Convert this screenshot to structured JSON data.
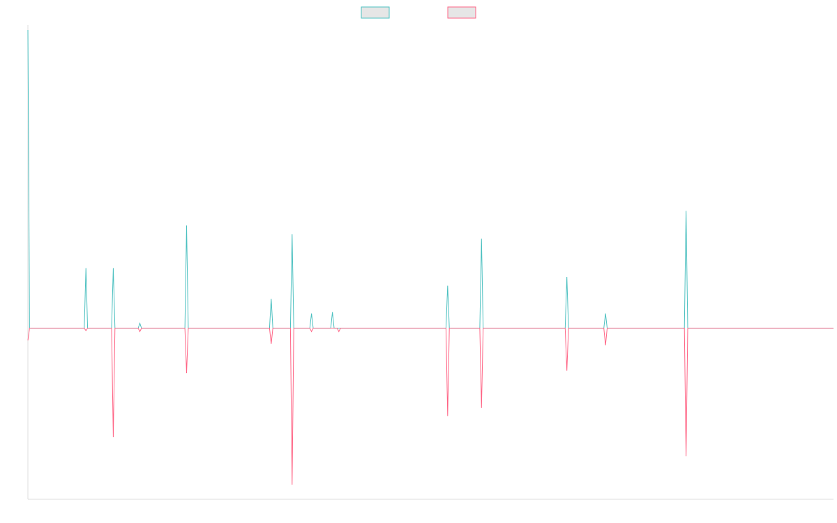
{
  "chart_data": {
    "type": "line",
    "title": "",
    "xlabel": "",
    "ylabel": "",
    "grid": false,
    "legend": "top-center",
    "xlim": [
      0,
      1000
    ],
    "ylim": [
      -35,
      62
    ],
    "series": [
      {
        "color": "#4bc0c0",
        "swatch_fill": "#e6e6e6",
        "spikes": [
          {
            "x": 0,
            "y": 61
          },
          {
            "x": 72,
            "y": 12.3
          },
          {
            "x": 106,
            "y": 12.3
          },
          {
            "x": 139,
            "y": 1.0
          },
          {
            "x": 197,
            "y": 21
          },
          {
            "x": 302,
            "y": 6
          },
          {
            "x": 328,
            "y": 19.2
          },
          {
            "x": 352,
            "y": 3
          },
          {
            "x": 378,
            "y": 3.3
          },
          {
            "x": 521,
            "y": 8.7
          },
          {
            "x": 563,
            "y": 18.3
          },
          {
            "x": 669,
            "y": 10.5
          },
          {
            "x": 717,
            "y": 3
          },
          {
            "x": 817,
            "y": 24
          }
        ]
      },
      {
        "color": "#ff6384",
        "swatch_fill": "#e6e6e6",
        "spikes": [
          {
            "x": 0,
            "y": -2.5
          },
          {
            "x": 72,
            "y": -0.5
          },
          {
            "x": 106,
            "y": -22.3
          },
          {
            "x": 139,
            "y": -0.7
          },
          {
            "x": 197,
            "y": -9.2
          },
          {
            "x": 302,
            "y": -3.2
          },
          {
            "x": 328,
            "y": -32
          },
          {
            "x": 352,
            "y": -0.7
          },
          {
            "x": 386,
            "y": -0.7
          },
          {
            "x": 521,
            "y": -18
          },
          {
            "x": 563,
            "y": -16.3
          },
          {
            "x": 669,
            "y": -8.7
          },
          {
            "x": 717,
            "y": -3.5
          },
          {
            "x": 817,
            "y": -26.2
          }
        ]
      }
    ]
  }
}
